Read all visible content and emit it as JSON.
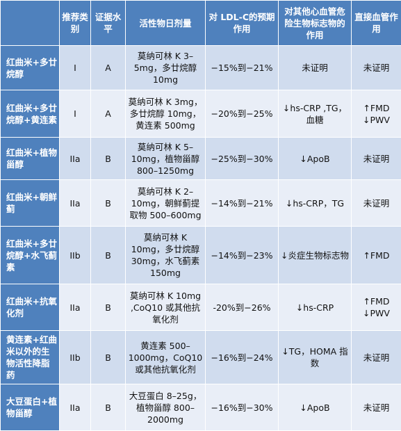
{
  "headers": [
    "",
    "推荐类别",
    "证据水平",
    "活性物日剂量",
    "对 LDL-C的预期作用",
    "对其他心血管危险生物标志物的作用",
    "直接血管作用"
  ],
  "rows": [
    {
      "name": "红曲米+多廿烷醇",
      "cls": "I",
      "level": "A",
      "dose": "莫纳可林 K 3–5mg，多廿烷醇 10mg",
      "ldl": "−15%到−21%",
      "markers": "未证明",
      "vascular": "未证明"
    },
    {
      "name": "红曲米+多廿烷醇+黄连素",
      "cls": "I",
      "level": "A",
      "dose": "莫纳可林 K 3mg，多廿烷醇 10mg，黄连素 500mg",
      "ldl": "−20%到−25%",
      "markers": "↓hs-CRP ,TG，血糖",
      "vascular": "↑FMD\n↓PWV"
    },
    {
      "name": "红曲米+植物甾醇",
      "cls": "IIa",
      "level": "B",
      "dose": "莫纳可林 K 5–10mg，植物甾醇 800–1250mg",
      "ldl": "−25%到−30%",
      "markers": "↓ApoB",
      "vascular": "未证明"
    },
    {
      "name": "红曲米+朝鲜蓟",
      "cls": "IIa",
      "level": "B",
      "dose": "莫纳可林 K 2–10mg，朝鲜蓟提取物 500–600mg",
      "ldl": "−14%到−21%",
      "markers": "↓hs-CRP，TG",
      "vascular": "未证明"
    },
    {
      "name": "红曲米+多廿烷醇+水飞蓟素",
      "cls": "IIb",
      "level": "B",
      "dose": "莫纳可林 K 10mg，多廿烷醇 30mg，水飞蓟素 150mg",
      "ldl": "−14%到−23%",
      "markers": "↓炎症生物标志物",
      "vascular": "↑FMD"
    },
    {
      "name": "红曲米+抗氧化剂",
      "cls": "IIa",
      "level": "B",
      "dose": "莫纳可林 K 10mg ,CoQ10 或其他抗氧化剂",
      "ldl": "-20%到−26%",
      "markers": "↓hs-CRP",
      "vascular": "↑FMD\n↓PWV"
    },
    {
      "name": "黄连素+红曲米以外的生物活性降脂药",
      "cls": "IIb",
      "level": "B",
      "dose": "黄连素 500–1000mg，CoQ10 或其他抗氧化剂",
      "ldl": "−16%到−24%",
      "markers": "↓TG，HOMA 指数",
      "vascular": "未证明"
    },
    {
      "name": "大豆蛋白+植物甾醇",
      "cls": "IIa",
      "level": "B",
      "dose": "大豆蛋白 8–25g，植物甾醇 800–2000mg",
      "ldl": "−16%到−30%",
      "markers": "↓ApoB",
      "vascular": "未证明"
    }
  ]
}
